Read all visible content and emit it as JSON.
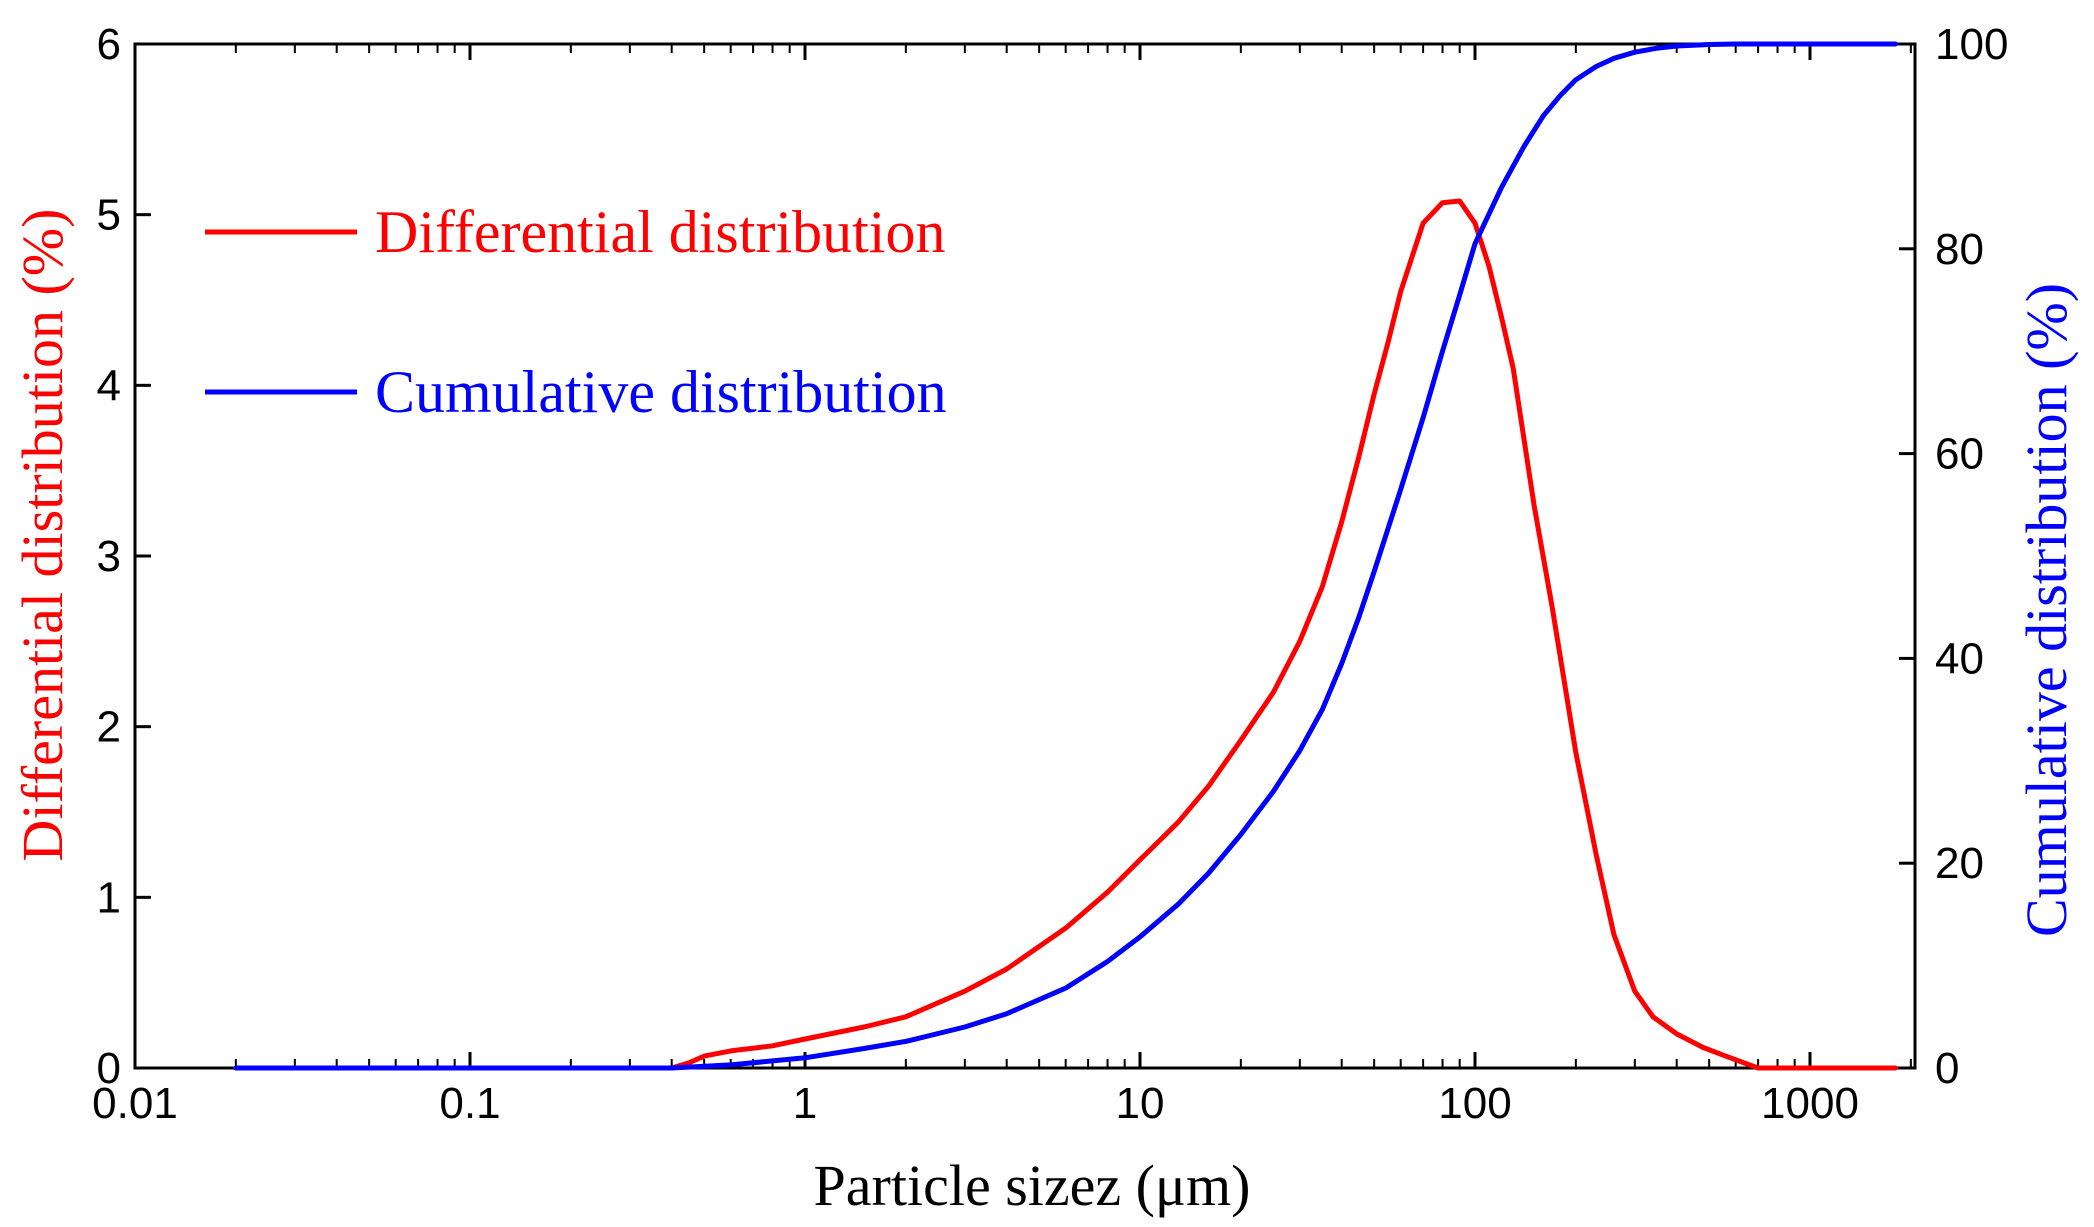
{
  "chart_data": {
    "type": "line",
    "xscale": "log",
    "xlim": [
      0.01,
      2000
    ],
    "xticks": [
      0.01,
      0.1,
      1,
      10,
      100,
      1000
    ],
    "xtick_labels": [
      "0.01",
      "0.1",
      "1",
      "10",
      "100",
      "1000"
    ],
    "xlabel": "Particle sizez (μm)",
    "ylabel_left": "Differential distribution (%)",
    "ylabel_right": "Cumulative distribution (%)",
    "ylim_left": [
      0,
      6
    ],
    "ylim_right": [
      0,
      100
    ],
    "yticks_left": [
      "0",
      "1",
      "2",
      "3",
      "4",
      "5",
      "6"
    ],
    "yticks_right": [
      "0",
      "20",
      "40",
      "60",
      "80",
      "100"
    ],
    "grid": false,
    "legend_position": "top-left",
    "colors": {
      "differential": "#ff0000",
      "cumulative": "#0000ff"
    },
    "series": [
      {
        "name": "Differential distribution",
        "axis": "left",
        "x": [
          0.02,
          0.2,
          0.4,
          0.45,
          0.5,
          0.6,
          0.8,
          1,
          1.5,
          2,
          3,
          4,
          6,
          8,
          10,
          13,
          16,
          20,
          25,
          30,
          35,
          40,
          45,
          50,
          55,
          60,
          70,
          80,
          90,
          100,
          110,
          120,
          130,
          150,
          170,
          200,
          230,
          260,
          300,
          340,
          400,
          480,
          560,
          700,
          1000,
          1800
        ],
        "values": [
          0,
          0,
          0,
          0.03,
          0.07,
          0.1,
          0.13,
          0.17,
          0.24,
          0.3,
          0.45,
          0.58,
          0.82,
          1.03,
          1.22,
          1.44,
          1.65,
          1.92,
          2.2,
          2.5,
          2.82,
          3.2,
          3.58,
          3.95,
          4.25,
          4.55,
          4.95,
          5.07,
          5.08,
          4.95,
          4.7,
          4.4,
          4.1,
          3.3,
          2.7,
          1.85,
          1.25,
          0.78,
          0.45,
          0.3,
          0.2,
          0.12,
          0.07,
          0.0,
          0.0,
          0.0
        ]
      },
      {
        "name": "Cumulative distribution",
        "axis": "right",
        "x": [
          0.02,
          0.2,
          0.4,
          0.6,
          1,
          1.5,
          2,
          3,
          4,
          6,
          8,
          10,
          13,
          16,
          20,
          25,
          30,
          35,
          40,
          45,
          50,
          60,
          70,
          80,
          90,
          100,
          120,
          140,
          160,
          180,
          200,
          230,
          260,
          300,
          350,
          400,
          500,
          600,
          800,
          1800
        ],
        "values": [
          0,
          0,
          0,
          0.3,
          1.0,
          1.9,
          2.6,
          4.0,
          5.3,
          7.8,
          10.4,
          12.8,
          16.0,
          19.0,
          22.8,
          27.0,
          31.0,
          35.0,
          39.5,
          44.0,
          48.5,
          56.5,
          63.5,
          70.0,
          75.5,
          80.5,
          86.0,
          90.0,
          93.0,
          95.0,
          96.5,
          97.8,
          98.6,
          99.2,
          99.6,
          99.8,
          99.95,
          100,
          100,
          100
        ]
      }
    ]
  }
}
